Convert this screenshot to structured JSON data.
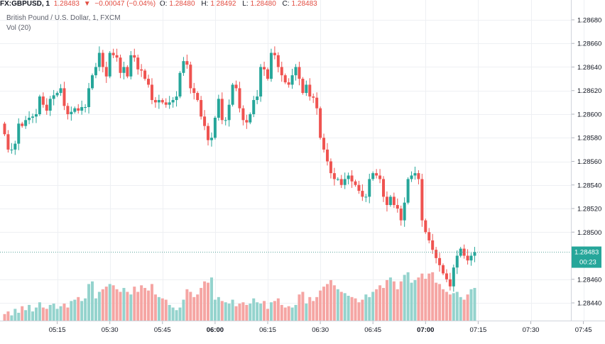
{
  "header": {
    "symbol": "FX:GBPUSD, 1",
    "last": "1.28483",
    "arrow": "▼",
    "change": "−0.00047 (−0.04%)",
    "o_label": "O:",
    "o_value": "1.28480",
    "h_label": "H:",
    "h_value": "1.28492",
    "l_label": "L:",
    "l_value": "1.28480",
    "c_label": "C:",
    "c_value": "1.28483"
  },
  "legend": {
    "title": "British Pound / U.S. Dollar, 1, FXCM",
    "volume": "Vol (20)"
  },
  "price_tag": {
    "price": "1.28483",
    "countdown": "00:23"
  },
  "colors": {
    "up": "#26a69a",
    "down": "#ef5350",
    "up_vol": "#94d3cd",
    "down_vol": "#f5a5a3",
    "grid": "#eef0f3",
    "last_line": "#5ea8a0"
  },
  "chart_data": {
    "type": "candlestick",
    "title": "British Pound / U.S. Dollar, 1, FXCM",
    "interval": "1 minute",
    "ylim": [
      1.28425,
      1.28692
    ],
    "y_ticks": [
      "1.28680",
      "1.28660",
      "1.28640",
      "1.28620",
      "1.28600",
      "1.28580",
      "1.28560",
      "1.28540",
      "1.28520",
      "1.28500",
      "1.28460",
      "1.28440"
    ],
    "x_ticks": [
      {
        "label": "05:15",
        "t": 15,
        "bold": false
      },
      {
        "label": "05:30",
        "t": 30,
        "bold": false
      },
      {
        "label": "05:45",
        "t": 45,
        "bold": false
      },
      {
        "label": "06:00",
        "t": 60,
        "bold": true
      },
      {
        "label": "06:15",
        "t": 75,
        "bold": false
      },
      {
        "label": "06:30",
        "t": 90,
        "bold": false
      },
      {
        "label": "06:45",
        "t": 105,
        "bold": false
      },
      {
        "label": "07:00",
        "t": 120,
        "bold": true
      },
      {
        "label": "07:15",
        "t": 135,
        "bold": false
      },
      {
        "label": "07:30",
        "t": 150,
        "bold": false
      },
      {
        "label": "07:45",
        "t": 165,
        "bold": false
      },
      {
        "label": "08:00",
        "t": 180,
        "bold": true
      }
    ],
    "time_start": "05:00",
    "last_price": 1.28483,
    "closes": [
      1.28583,
      1.2857,
      1.2857,
      1.28575,
      1.28592,
      1.2859,
      1.28595,
      1.28597,
      1.28598,
      1.286,
      1.28615,
      1.28608,
      1.28603,
      1.28613,
      1.28616,
      1.28618,
      1.28622,
      1.28607,
      1.286,
      1.28602,
      1.28605,
      1.28603,
      1.28606,
      1.28606,
      1.28622,
      1.28633,
      1.2864,
      1.28652,
      1.2864,
      1.28632,
      1.28652,
      1.2865,
      1.28648,
      1.28635,
      1.2864,
      1.28632,
      1.2865,
      1.28648,
      1.28638,
      1.28637,
      1.2863,
      1.28625,
      1.28612,
      1.2861,
      1.28612,
      1.2861,
      1.28608,
      1.2861,
      1.28612,
      1.28615,
      1.28635,
      1.28645,
      1.28642,
      1.28622,
      1.28618,
      1.28612,
      1.28598,
      1.2859,
      1.28578,
      1.2858,
      1.28597,
      1.28613,
      1.28595,
      1.28595,
      1.28608,
      1.28625,
      1.28622,
      1.28605,
      1.28595,
      1.28593,
      1.286,
      1.28612,
      1.28615,
      1.2864,
      1.28638,
      1.2863,
      1.28652,
      1.2865,
      1.2864,
      1.28633,
      1.28627,
      1.28625,
      1.28633,
      1.2864,
      1.2863,
      1.28618,
      1.28625,
      1.28615,
      1.28614,
      1.28605,
      1.2858,
      1.2857,
      1.2856,
      1.2855,
      1.28545,
      1.28545,
      1.2854,
      1.28545,
      1.28548,
      1.28543,
      1.2854,
      1.28535,
      1.2853,
      1.2853,
      1.28545,
      1.2855,
      1.28548,
      1.28545,
      1.2853,
      1.28523,
      1.2853,
      1.28523,
      1.2852,
      1.2851,
      1.28525,
      1.28545,
      1.28548,
      1.2855,
      1.28545,
      1.2851,
      1.285,
      1.28493,
      1.28485,
      1.28478,
      1.28472,
      1.28465,
      1.2846,
      1.28454,
      1.2847,
      1.2848,
      1.28486,
      1.2848,
      1.28476,
      1.2848,
      1.28483
    ],
    "volumes": [
      5,
      7,
      4,
      9,
      6,
      11,
      8,
      12,
      7,
      10,
      14,
      10,
      9,
      12,
      13,
      9,
      11,
      13,
      10,
      15,
      16,
      18,
      15,
      17,
      28,
      30,
      17,
      22,
      24,
      26,
      28,
      27,
      24,
      22,
      25,
      22,
      20,
      26,
      22,
      27,
      25,
      23,
      28,
      20,
      18,
      17,
      16,
      12,
      10,
      8,
      10,
      16,
      24,
      22,
      18,
      20,
      25,
      30,
      29,
      33,
      16,
      18,
      15,
      14,
      13,
      16,
      11,
      13,
      14,
      12,
      13,
      17,
      14,
      13,
      15,
      9,
      14,
      15,
      17,
      12,
      10,
      11,
      10,
      12,
      20,
      22,
      13,
      18,
      15,
      18,
      23,
      26,
      28,
      31,
      27,
      24,
      22,
      21,
      19,
      18,
      17,
      14,
      16,
      20,
      18,
      22,
      24,
      27,
      25,
      31,
      33,
      30,
      24,
      30,
      35,
      37,
      29,
      31,
      33,
      36,
      32,
      36,
      37,
      29,
      28,
      24,
      22,
      20,
      21,
      22,
      18,
      16,
      20,
      24,
      25
    ]
  }
}
